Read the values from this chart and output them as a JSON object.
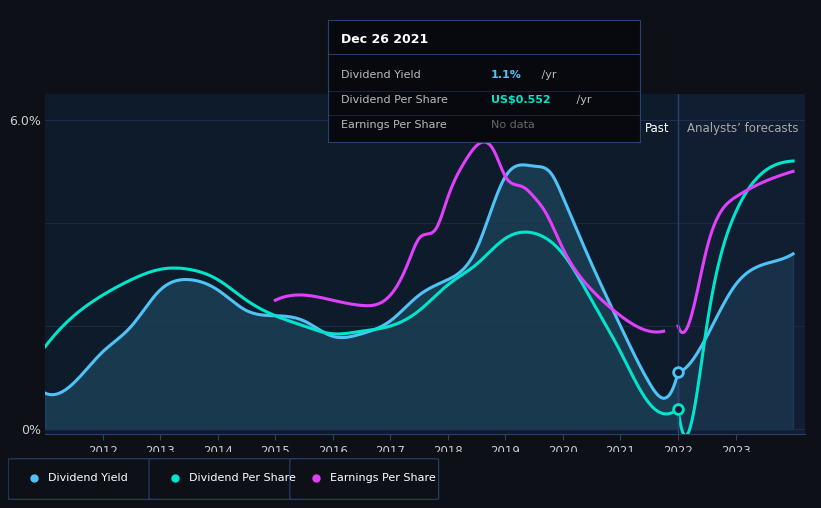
{
  "bg_color": "#0d1117",
  "plot_bg_color": "#0d1b2a",
  "past_bg_color": "#0d1b2a",
  "forecast_bg_color": "#111d30",
  "grid_color": "#1e3050",
  "title_text": "Dec 26 2021",
  "tooltip_items": [
    {
      "label": "Dividend Yield",
      "value": "1.1%",
      "suffix": " /yr",
      "color": "#4fc3f7"
    },
    {
      "label": "Dividend Per Share",
      "value": "US$0.552",
      "suffix": " /yr",
      "color": "#00e5cc"
    },
    {
      "label": "Earnings Per Share",
      "value": "No data",
      "suffix": "",
      "color": "#777777"
    }
  ],
  "dividend_yield_color": "#4fc3f7",
  "dividend_per_share_color": "#00e5cc",
  "earnings_per_share_color": "#e040fb",
  "past_end": 2022.0,
  "xlim": [
    2011.0,
    2024.2
  ],
  "ylim": [
    -0.1,
    6.5
  ],
  "ylabel_0": "0%",
  "ylabel_6": "6.0%",
  "past_label": "Past",
  "forecast_label": "Analysts’ forecasts",
  "dy_x": [
    2011.0,
    2011.5,
    2012.0,
    2012.5,
    2013.0,
    2013.5,
    2014.0,
    2014.5,
    2015.0,
    2015.5,
    2016.0,
    2016.5,
    2017.0,
    2017.5,
    2018.0,
    2018.5,
    2019.0,
    2019.5,
    2019.8,
    2020.0,
    2020.5,
    2021.0,
    2021.5,
    2021.75,
    2022.0
  ],
  "dy_y": [
    0.7,
    0.9,
    1.5,
    2.0,
    2.7,
    2.9,
    2.7,
    2.3,
    2.2,
    2.1,
    1.8,
    1.85,
    2.1,
    2.6,
    2.9,
    3.5,
    4.9,
    5.1,
    4.95,
    4.5,
    3.2,
    2.0,
    0.9,
    0.6,
    1.1
  ],
  "dy_fc_x": [
    2022.0,
    2022.5,
    2023.0,
    2023.5,
    2024.0
  ],
  "dy_fc_y": [
    1.1,
    1.8,
    2.8,
    3.2,
    3.4
  ],
  "dps_x": [
    2011.0,
    2011.5,
    2012.0,
    2012.5,
    2013.0,
    2013.5,
    2014.0,
    2014.5,
    2015.0,
    2015.5,
    2016.0,
    2016.5,
    2017.0,
    2017.5,
    2018.0,
    2018.5,
    2019.0,
    2019.5,
    2020.0,
    2020.5,
    2021.0,
    2021.5,
    2021.75,
    2022.0
  ],
  "dps_y": [
    1.6,
    2.2,
    2.6,
    2.9,
    3.1,
    3.1,
    2.9,
    2.5,
    2.2,
    2.0,
    1.85,
    1.9,
    2.0,
    2.3,
    2.8,
    3.2,
    3.7,
    3.8,
    3.4,
    2.5,
    1.5,
    0.5,
    0.3,
    0.4
  ],
  "dps_fc_x": [
    2022.0,
    2022.3,
    2022.5,
    2023.0,
    2023.5,
    2024.0
  ],
  "dps_fc_y": [
    0.4,
    0.5,
    2.0,
    4.2,
    5.0,
    5.2
  ],
  "eps_x": [
    2015.0,
    2015.5,
    2016.0,
    2016.5,
    2017.0,
    2017.3,
    2017.5,
    2017.8,
    2018.0,
    2018.3,
    2018.5,
    2018.8,
    2019.0,
    2019.3,
    2019.5,
    2019.7,
    2020.0,
    2020.5,
    2021.0,
    2021.5,
    2021.75
  ],
  "eps_y": [
    2.5,
    2.6,
    2.5,
    2.4,
    2.6,
    3.2,
    3.7,
    3.9,
    4.5,
    5.2,
    5.5,
    5.4,
    4.9,
    4.7,
    4.5,
    4.2,
    3.5,
    2.7,
    2.2,
    1.9,
    1.9
  ],
  "eps_fc_x": [
    2022.0,
    2022.3,
    2022.5,
    2023.0,
    2023.5,
    2024.0
  ],
  "eps_fc_y": [
    2.0,
    2.5,
    3.5,
    4.5,
    4.8,
    5.0
  ]
}
